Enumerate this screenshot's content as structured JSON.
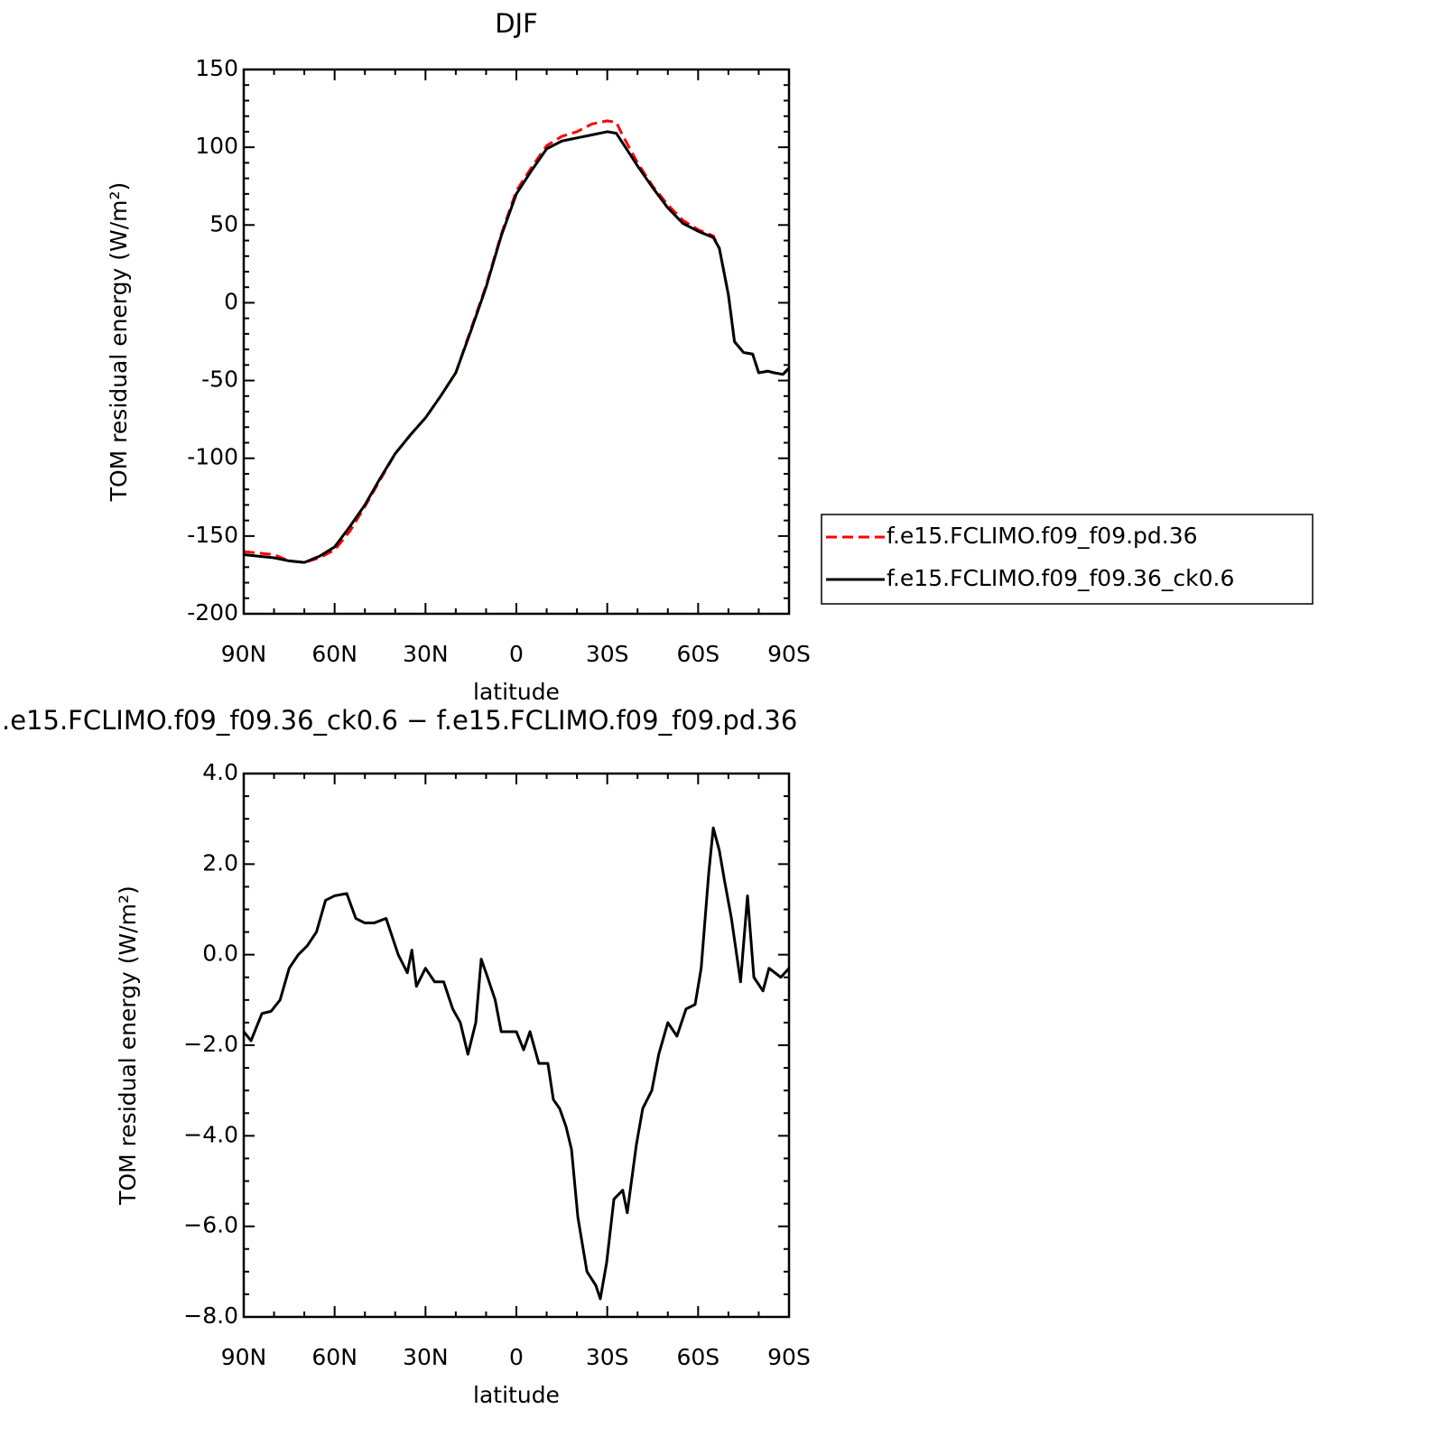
{
  "chart_data": [
    {
      "type": "line",
      "title": "DJF",
      "xlabel": "latitude",
      "ylabel": "TOM residual energy (W/m²)",
      "x": [
        90,
        85,
        80,
        75,
        70,
        65,
        60,
        55,
        50,
        45,
        40,
        35,
        30,
        25,
        20,
        15,
        10,
        5,
        0,
        -5,
        -10,
        -15,
        -20,
        -25,
        -30,
        -33,
        -35,
        -40,
        -45,
        -50,
        -55,
        -60,
        -65,
        -67,
        -70,
        -72,
        -75,
        -78,
        -80,
        -83,
        -85,
        -88,
        -90
      ],
      "series": [
        {
          "name": "f.e15.FCLIMO.f09_f09.pd.36",
          "color": "#ff0000",
          "dash": true,
          "values": [
            -160,
            -161,
            -162,
            -166,
            -167,
            -164,
            -159,
            -147,
            -131,
            -114,
            -97,
            -85,
            -74,
            -60,
            -45,
            -17,
            11,
            44,
            72,
            87,
            101,
            107,
            110,
            115,
            117,
            116,
            108,
            90,
            75,
            63,
            53,
            47,
            43,
            35,
            5,
            -25,
            -32,
            -33,
            -45,
            -44,
            -45,
            -46,
            -42
          ]
        },
        {
          "name": "f.e15.FCLIMO.f09_f09.36_ck0.6",
          "color": "#000000",
          "dash": false,
          "values": [
            -162,
            -163,
            -164,
            -166,
            -167,
            -163,
            -157,
            -144,
            -130,
            -113,
            -97,
            -85,
            -74,
            -60,
            -45,
            -18,
            10,
            43,
            70,
            85,
            99,
            104,
            106,
            108,
            110,
            109,
            103,
            88,
            74,
            61,
            51,
            46,
            42,
            35,
            5,
            -25,
            -32,
            -33,
            -45,
            -44,
            -45,
            -46,
            -42
          ]
        }
      ],
      "xlim": [
        90,
        -90
      ],
      "xticks": [
        {
          "value": 90,
          "label": "90N"
        },
        {
          "value": 60,
          "label": "60N"
        },
        {
          "value": 30,
          "label": "30N"
        },
        0,
        {
          "value": -30,
          "label": "30S"
        },
        {
          "value": -60,
          "label": "60S"
        },
        {
          "value": -90,
          "label": "90S"
        }
      ],
      "ylim": [
        -200,
        150
      ],
      "yticks": [
        -200,
        -150,
        -100,
        -50,
        0,
        50,
        100,
        150
      ],
      "legend": "outside-right"
    },
    {
      "type": "line",
      "title": ".e15.FCLIMO.f09_f09.36_ck0.6 − f.e15.FCLIMO.f09_f09.pd.36",
      "xlabel": "latitude",
      "ylabel": "TOM residual energy (W/m²)",
      "x": [
        90,
        87.6,
        84,
        81,
        78,
        75,
        72,
        69,
        66,
        63,
        60,
        56,
        53,
        50,
        47,
        43,
        39,
        36,
        34.5,
        33,
        30,
        27,
        24,
        21,
        18.5,
        16,
        13.4,
        11.6,
        9.5,
        7,
        5,
        2,
        0,
        -2.4,
        -4.5,
        -7.4,
        -10.4,
        -12.2,
        -14.3,
        -16.4,
        -18.2,
        -20.3,
        -23.3,
        -26.2,
        -27.7,
        -29.8,
        -32.2,
        -35.1,
        -36.6,
        -39.6,
        -41.7,
        -44.7,
        -47,
        -50,
        -53,
        -56,
        -59,
        -61,
        -63.5,
        -65,
        -67,
        -68.8,
        -71,
        -74,
        -76.3,
        -78.4,
        -81.4,
        -83.4,
        -87.3,
        -90
      ],
      "values": [
        -1.7,
        -1.9,
        -1.3,
        -1.25,
        -1.0,
        -0.3,
        0,
        0.2,
        0.5,
        1.2,
        1.3,
        1.35,
        0.8,
        0.7,
        0.7,
        0.8,
        0.0,
        -0.4,
        0.1,
        -0.7,
        -0.3,
        -0.6,
        -0.6,
        -1.2,
        -1.5,
        -2.2,
        -1.5,
        -0.1,
        -0.5,
        -1.0,
        -1.7,
        -1.7,
        -1.7,
        -2.1,
        -1.7,
        -2.4,
        -2.4,
        -3.2,
        -3.4,
        -3.8,
        -4.3,
        -5.8,
        -7.0,
        -7.3,
        -7.6,
        -6.8,
        -5.4,
        -5.2,
        -5.7,
        -4.2,
        -3.4,
        -3.0,
        -2.2,
        -1.5,
        -1.8,
        -1.2,
        -1.1,
        -0.3,
        1.8,
        2.8,
        2.3,
        1.6,
        0.8,
        -0.6,
        1.3,
        -0.5,
        -0.8,
        -0.3,
        -0.5,
        -0.3
      ],
      "color": "#000000",
      "xlim": [
        90,
        -90
      ],
      "xticks": [
        {
          "value": 90,
          "label": "90N"
        },
        {
          "value": 60,
          "label": "60N"
        },
        {
          "value": 30,
          "label": "30N"
        },
        0,
        {
          "value": -30,
          "label": "30S"
        },
        {
          "value": -60,
          "label": "60S"
        },
        {
          "value": -90,
          "label": "90S"
        }
      ],
      "ylim": [
        -8,
        4
      ],
      "yticks": [
        {
          "value": -8,
          "label": "−8.0"
        },
        {
          "value": -6,
          "label": "−6.0"
        },
        {
          "value": -4,
          "label": "−4.0"
        },
        {
          "value": -2,
          "label": "−2.0"
        },
        {
          "value": 0,
          "label": "0.0"
        },
        {
          "value": 2,
          "label": "2.0"
        },
        {
          "value": 4,
          "label": "4.0"
        }
      ]
    }
  ]
}
